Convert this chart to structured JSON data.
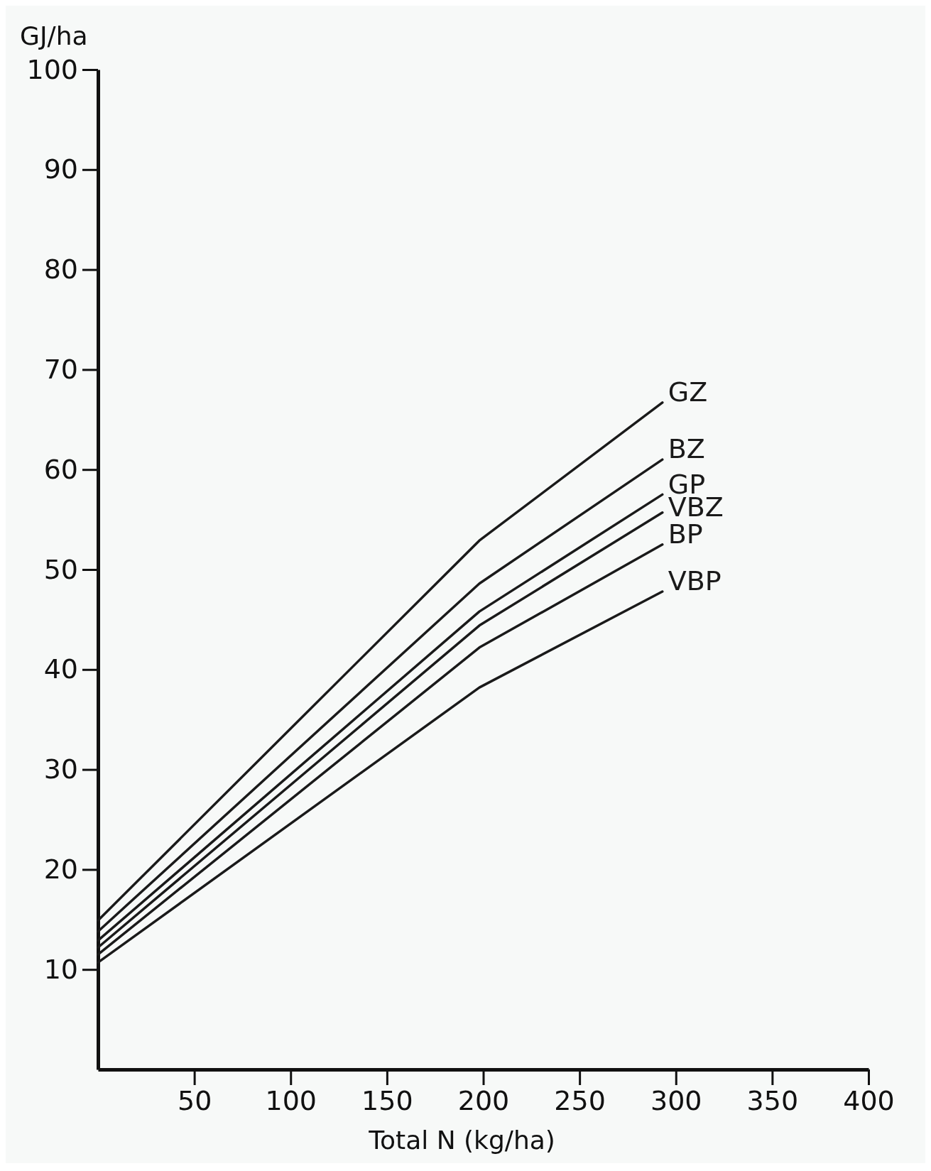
{
  "chart_data": {
    "type": "line",
    "ylabel": "GJ/ha",
    "xlabel": "Total N (kg/ha)",
    "xlim": [
      0,
      400
    ],
    "ylim": [
      0,
      100
    ],
    "xticks": [
      50,
      100,
      150,
      200,
      250,
      300,
      350,
      400
    ],
    "yticks": [
      10,
      20,
      30,
      40,
      50,
      60,
      70,
      80,
      90,
      100
    ],
    "x": [
      0,
      198,
      293
    ],
    "grid": false,
    "marker": "none",
    "line_style": "solid",
    "series": [
      {
        "name": "GZ",
        "color": "#1a1a1a",
        "values": [
          14.9,
          52.9,
          66.7
        ]
      },
      {
        "name": "BZ",
        "color": "#1a1a1a",
        "values": [
          13.8,
          48.6,
          61.0
        ]
      },
      {
        "name": "GP",
        "color": "#1a1a1a",
        "values": [
          12.9,
          45.8,
          57.5
        ]
      },
      {
        "name": "VBZ",
        "color": "#1a1a1a",
        "values": [
          12.2,
          44.4,
          55.7
        ]
      },
      {
        "name": "BP",
        "color": "#1a1a1a",
        "values": [
          11.5,
          42.2,
          52.5
        ]
      },
      {
        "name": "VBP",
        "color": "#1a1a1a",
        "values": [
          10.7,
          38.2,
          47.8
        ]
      }
    ]
  }
}
